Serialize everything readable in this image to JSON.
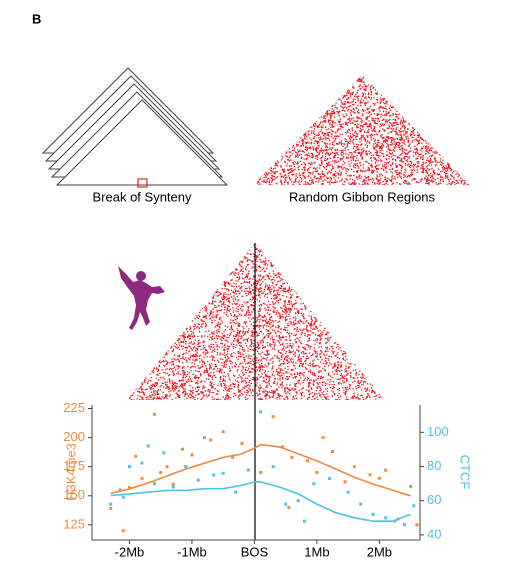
{
  "panel_label": "B",
  "labels": {
    "left": "Break of Synteny",
    "right": "Random Gibbon Regions"
  },
  "chart_data": {
    "type": "scatter",
    "xlim": [
      -2.6,
      2.65
    ],
    "xticks": [
      {
        "value": -2,
        "label": "-2Mb"
      },
      {
        "value": -1,
        "label": "-1Mb"
      },
      {
        "value": 0,
        "label": "BOS"
      },
      {
        "value": 1,
        "label": "1Mb"
      },
      {
        "value": 2,
        "label": "2Mb"
      }
    ],
    "ylim": [
      112,
      228
    ],
    "yticks": [
      125,
      150,
      175,
      200,
      225
    ],
    "ylabel": "H3K4me3",
    "y2lim": [
      37,
      116
    ],
    "y2ticks": [
      40,
      60,
      80,
      100
    ],
    "y2label": "CTCF",
    "series": [
      {
        "name": "H3K4me3",
        "axis": "y",
        "color": "#f08a3c",
        "x": [
          -2.3,
          -2.15,
          -2.0,
          -1.9,
          -1.8,
          -1.6,
          -1.5,
          -1.4,
          -1.3,
          -1.15,
          -1.0,
          -0.8,
          -0.7,
          -0.5,
          -0.35,
          -0.2,
          0.1,
          0.3,
          0.45,
          0.6,
          0.85,
          1.0,
          1.1,
          1.25,
          1.45,
          1.6,
          1.85,
          2.0,
          2.1,
          2.3,
          2.5,
          2.6,
          -2.1,
          0.55
        ],
        "values": [
          139,
          155,
          157,
          184,
          165,
          220,
          170,
          175,
          160,
          190,
          185,
          200,
          198,
          205,
          183,
          195,
          170,
          218,
          192,
          183,
          180,
          170,
          200,
          188,
          162,
          175,
          168,
          165,
          172,
          130,
          158,
          125,
          120,
          140
        ],
        "trend_x": [
          -2.3,
          -2.0,
          -1.7,
          -1.4,
          -1.1,
          -0.8,
          -0.5,
          -0.2,
          0,
          0.1,
          0.4,
          0.7,
          1.0,
          1.3,
          1.6,
          1.9,
          2.2,
          2.5
        ],
        "trend": [
          152,
          156,
          161,
          167,
          173,
          178,
          183,
          186,
          191,
          194,
          192,
          186,
          180,
          173,
          166,
          160,
          155,
          150
        ]
      },
      {
        "name": "CTCF",
        "axis": "y2",
        "color": "#4cc3ec",
        "x": [
          -2.3,
          -2.1,
          -2.0,
          -1.8,
          -1.6,
          -1.45,
          -1.3,
          -1.1,
          -0.9,
          -0.65,
          -0.5,
          -0.3,
          -0.1,
          0.1,
          0.3,
          0.5,
          0.7,
          0.95,
          1.2,
          1.5,
          1.7,
          1.9,
          2.1,
          2.25,
          2.4,
          2.55,
          -1.7,
          0.8
        ],
        "values": [
          58,
          62,
          80,
          82,
          70,
          88,
          68,
          80,
          72,
          75,
          76,
          65,
          78,
          112,
          80,
          58,
          60,
          70,
          73,
          65,
          58,
          52,
          50,
          48,
          46,
          57,
          92,
          48
        ],
        "trend_x": [
          -2.3,
          -2.0,
          -1.7,
          -1.4,
          -1.1,
          -0.8,
          -0.5,
          -0.2,
          0,
          0.1,
          0.4,
          0.7,
          1.0,
          1.3,
          1.6,
          1.9,
          2.2,
          2.5
        ],
        "trend": [
          63,
          64,
          65,
          66,
          66,
          67,
          67,
          69,
          71,
          71,
          68,
          64,
          58,
          53,
          50,
          48,
          48,
          52
        ]
      }
    ]
  }
}
